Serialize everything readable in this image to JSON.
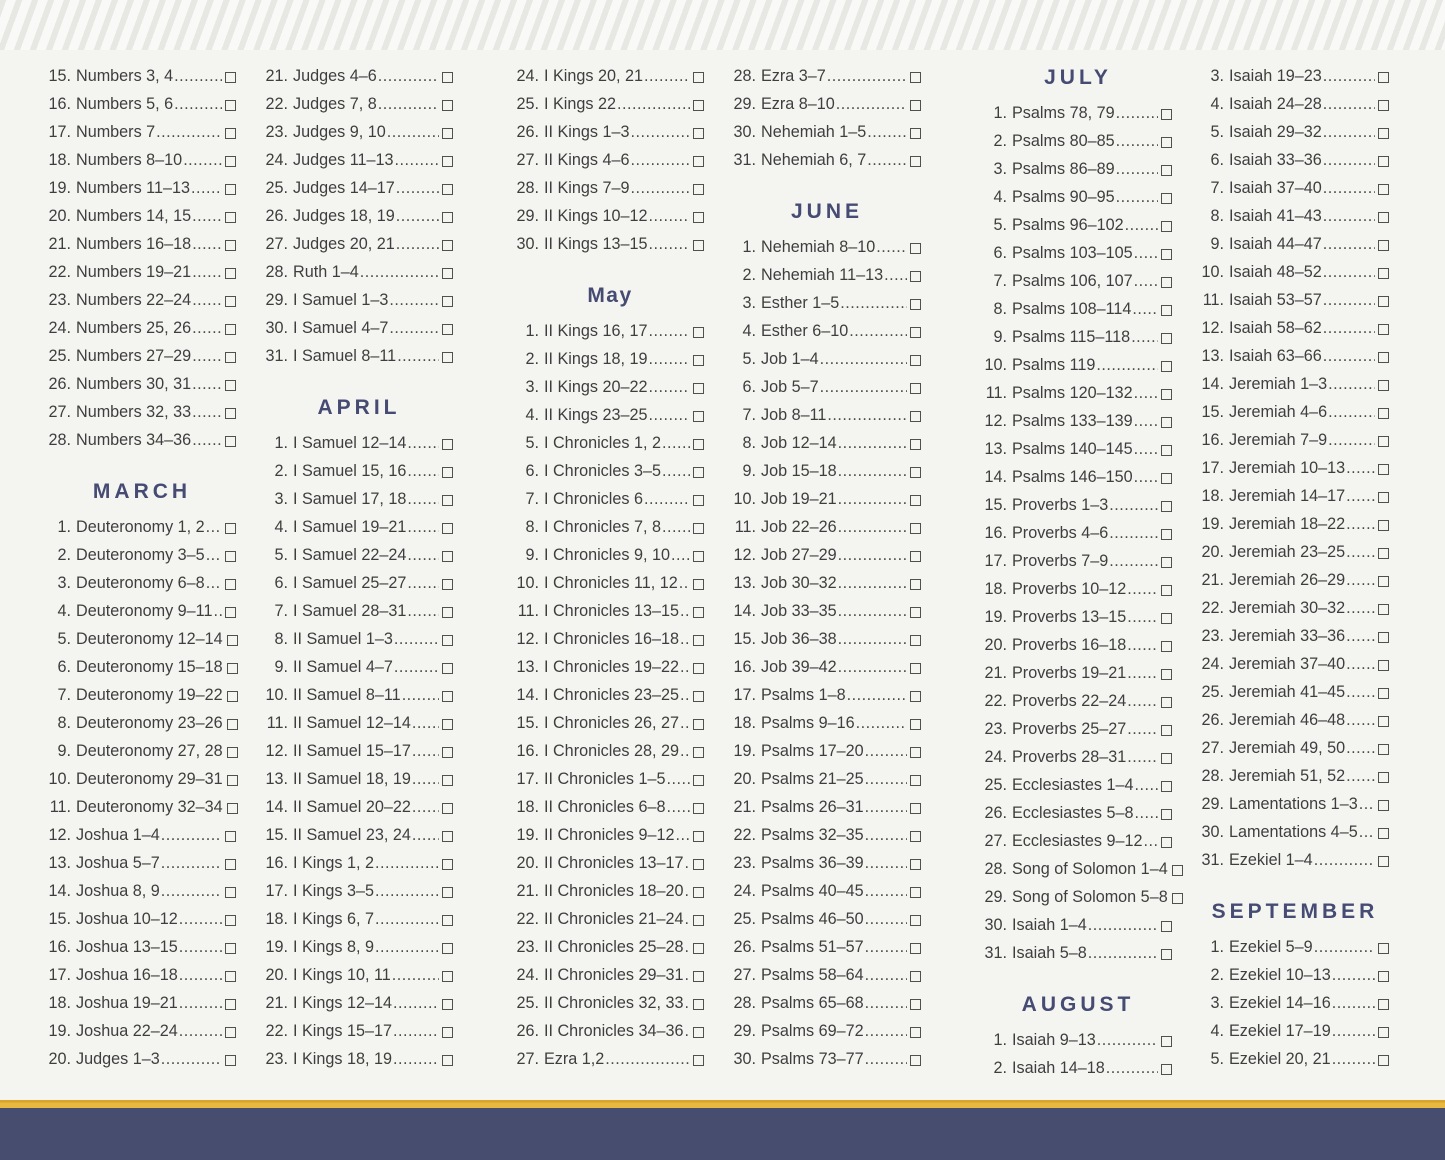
{
  "theme": {
    "month_header_color": "#454b72",
    "text_color": "#3e3e3e",
    "page_background": "#f4f4f1",
    "stripe_color": "#e7e7e4",
    "gold_bar_color": "#e9b93f",
    "footer_band_color": "#474d6e"
  },
  "checkbox_state": "unchecked",
  "columns": [
    {
      "sections": [
        {
          "month": null,
          "items": [
            "15. Numbers 3, 4",
            "16. Numbers 5, 6",
            "17. Numbers 7",
            "18. Numbers 8–10",
            "19. Numbers 11–13",
            "20. Numbers 14, 15",
            "21. Numbers 16–18",
            "22. Numbers 19–21",
            "23. Numbers 22–24",
            "24. Numbers 25, 26",
            "25. Numbers 27–29",
            "26. Numbers 30, 31",
            "27. Numbers 32, 33",
            "28. Numbers 34–36"
          ]
        },
        {
          "month": "MARCH",
          "items": [
            "1. Deuteronomy 1, 2",
            "2. Deuteronomy 3–5",
            "3. Deuteronomy 6–8",
            "4. Deuteronomy 9–11",
            "5. Deuteronomy 12–14",
            "6. Deuteronomy 15–18",
            "7. Deuteronomy 19–22",
            "8. Deuteronomy 23–26",
            "9. Deuteronomy 27, 28",
            "10. Deuteronomy 29–31",
            "11. Deuteronomy 32–34",
            "12. Joshua 1–4",
            "13. Joshua 5–7",
            "14. Joshua 8, 9",
            "15. Joshua 10–12",
            "16. Joshua 13–15",
            "17. Joshua 16–18",
            "18. Joshua 19–21",
            "19. Joshua 22–24",
            "20. Judges 1–3"
          ]
        }
      ]
    },
    {
      "sections": [
        {
          "month": null,
          "items": [
            "21. Judges 4–6",
            "22. Judges 7, 8",
            "23. Judges 9, 10",
            "24. Judges 11–13",
            "25. Judges 14–17",
            "26. Judges 18, 19",
            "27. Judges 20, 21",
            "28. Ruth 1–4",
            "29. I Samuel 1–3",
            "30. I Samuel 4–7",
            "31. I Samuel 8–11"
          ]
        },
        {
          "month": "APRIL",
          "items": [
            "1. I Samuel 12–14",
            "2. I Samuel 15, 16",
            "3. I Samuel 17, 18",
            "4. I Samuel 19–21",
            "5. I Samuel 22–24",
            "6. I Samuel 25–27",
            "7. I Samuel 28–31",
            "8. II Samuel 1–3",
            "9. II Samuel 4–7",
            "10. II Samuel 8–11",
            "11. II Samuel 12–14",
            "12. II Samuel 15–17",
            "13. II Samuel 18, 19",
            "14. II Samuel 20–22",
            "15. II Samuel 23, 24",
            "16. I Kings 1, 2",
            "17. I Kings 3–5",
            "18. I Kings 6, 7",
            "19. I Kings 8, 9",
            "20. I Kings 10, 11",
            "21. I Kings 12–14",
            "22. I Kings 15–17",
            "23. I Kings 18, 19"
          ]
        }
      ]
    },
    {
      "sections": [
        {
          "month": null,
          "items": [
            "24. I Kings 20, 21",
            "25. I Kings 22",
            "26. II Kings 1–3",
            "27. II Kings 4–6",
            "28. II Kings 7–9",
            "29. II Kings 10–12",
            "30. II Kings 13–15"
          ]
        },
        {
          "month": "May",
          "items": [
            "1. II Kings 16, 17",
            "2. II Kings 18, 19",
            "3. II Kings 20–22",
            "4. II Kings 23–25",
            "5. I Chronicles 1, 2",
            "6. I Chronicles 3–5",
            "7. I Chronicles 6",
            "8. I Chronicles 7, 8",
            "9. I Chronicles 9, 10",
            "10. I Chronicles 11, 12",
            "11. I Chronicles 13–15",
            "12. I Chronicles 16–18",
            "13. I Chronicles 19–22",
            "14. I Chronicles 23–25",
            "15. I Chronicles 26, 27",
            "16. I Chronicles 28, 29",
            "17. II Chronicles 1–5",
            "18. II Chronicles 6–8",
            "19. II Chronicles 9–12",
            "20. II Chronicles 13–17",
            "21. II Chronicles 18–20",
            "22. II Chronicles 21–24",
            "23. II Chronicles 25–28",
            "24. II Chronicles 29–31",
            "25. II Chronicles 32, 33",
            "26. II Chronicles 34–36",
            "27. Ezra 1,2"
          ]
        }
      ]
    },
    {
      "sections": [
        {
          "month": null,
          "items": [
            "28. Ezra 3–7",
            "29. Ezra 8–10",
            "30. Nehemiah 1–5",
            "31. Nehemiah 6, 7"
          ]
        },
        {
          "month": "JUNE",
          "items": [
            "1. Nehemiah 8–10",
            "2. Nehemiah 11–13",
            "3. Esther 1–5",
            "4. Esther 6–10",
            "5. Job 1–4",
            "6. Job 5–7",
            "7. Job 8–11",
            "8. Job 12–14",
            "9. Job 15–18",
            "10. Job 19–21",
            "11. Job 22–26",
            "12. Job 27–29",
            "13. Job 30–32",
            "14. Job 33–35",
            "15. Job 36–38",
            "16. Job 39–42",
            "17. Psalms 1–8",
            "18. Psalms 9–16",
            "19. Psalms 17–20",
            "20. Psalms 21–25",
            "21. Psalms 26–31",
            "22. Psalms 32–35",
            "23. Psalms 36–39",
            "24. Psalms 40–45",
            "25. Psalms 46–50",
            "26. Psalms 51–57",
            "27. Psalms 58–64",
            "28. Psalms 65–68",
            "29. Psalms 69–72",
            "30. Psalms 73–77"
          ]
        }
      ]
    },
    {
      "sections": [
        {
          "month": "JULY",
          "items": [
            "1. Psalms 78, 79",
            "2. Psalms 80–85",
            "3. Psalms 86–89",
            "4. Psalms 90–95",
            "5. Psalms 96–102",
            "6. Psalms 103–105",
            "7. Psalms 106, 107",
            "8. Psalms 108–114",
            "9. Psalms 115–118",
            "10. Psalms 119",
            "11. Psalms 120–132",
            "12. Psalms 133–139",
            "13. Psalms 140–145",
            "14. Psalms 146–150",
            "15. Proverbs 1–3",
            "16. Proverbs 4–6",
            "17. Proverbs 7–9",
            "18. Proverbs 10–12",
            "19. Proverbs 13–15",
            "20. Proverbs 16–18",
            "21. Proverbs 19–21",
            "22. Proverbs 22–24",
            "23. Proverbs 25–27",
            "24. Proverbs 28–31",
            "25. Ecclesiastes 1–4",
            "26. Ecclesiastes 5–8",
            "27. Ecclesiastes 9–12",
            "28. Song of Solomon 1–4",
            "29. Song of Solomon 5–8",
            "30. Isaiah 1–4",
            "31. Isaiah 5–8"
          ]
        },
        {
          "month": "AUGUST",
          "items": [
            "1. Isaiah 9–13",
            "2. Isaiah 14–18"
          ]
        }
      ]
    },
    {
      "sections": [
        {
          "month": null,
          "items": [
            "3. Isaiah 19–23",
            "4. Isaiah 24–28",
            "5. Isaiah 29–32",
            "6. Isaiah 33–36",
            "7. Isaiah 37–40",
            "8. Isaiah 41–43",
            "9. Isaiah 44–47",
            "10. Isaiah 48–52",
            "11. Isaiah 53–57",
            "12. Isaiah 58–62",
            "13. Isaiah 63–66",
            "14. Jeremiah 1–3",
            "15. Jeremiah 4–6",
            "16. Jeremiah 7–9",
            "17. Jeremiah 10–13",
            "18. Jeremiah 14–17",
            "19. Jeremiah 18–22",
            "20. Jeremiah 23–25",
            "21. Jeremiah 26–29",
            "22. Jeremiah 30–32",
            "23. Jeremiah 33–36",
            "24. Jeremiah 37–40",
            "25. Jeremiah 41–45",
            "26. Jeremiah 46–48",
            "27. Jeremiah 49, 50",
            "28. Jeremiah 51, 52",
            "29. Lamentations 1–3",
            "30. Lamentations 4–5",
            "31. Ezekiel 1–4"
          ]
        },
        {
          "month": "SEPTEMBER",
          "items": [
            "1. Ezekiel 5–9",
            "2. Ezekiel 10–13",
            "3. Ezekiel 14–16",
            "4. Ezekiel 17–19",
            "5. Ezekiel 20, 21"
          ]
        }
      ]
    }
  ]
}
